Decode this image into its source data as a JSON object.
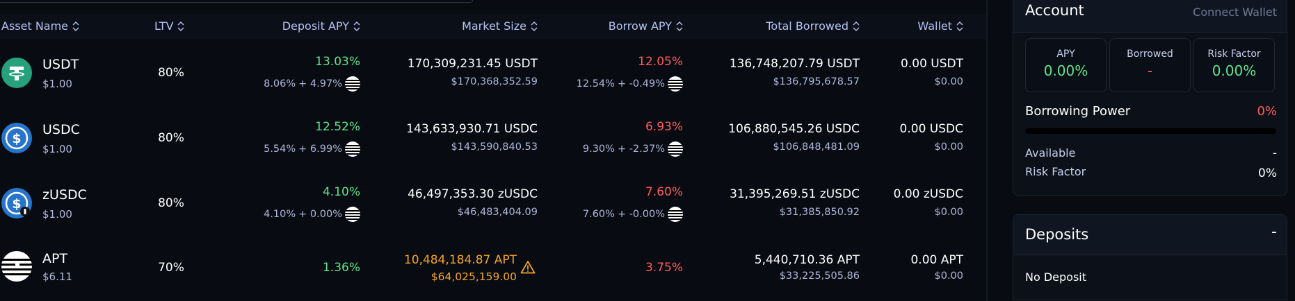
{
  "table": {
    "headers": {
      "asset_name": "Asset Name",
      "ltv": "LTV",
      "deposit_apy": "Deposit APY",
      "market_size": "Market Size",
      "borrow_apy": "Borrow APY",
      "total_borrowed": "Total Borrowed",
      "wallet": "Wallet"
    },
    "rows": [
      {
        "symbol": "USDT",
        "price": "$1.00",
        "ltv": "80%",
        "deposit_apy": "13.03%",
        "deposit_base": "8.06%",
        "deposit_reward": "+ 4.97%",
        "market_size": "170,309,231.45 USDT",
        "market_size_usd": "$170,368,352.59",
        "borrow_apy": "12.05%",
        "borrow_base": "12.54%",
        "borrow_reward": "+ -0.49%",
        "total_borrowed": "136,748,207.79 USDT",
        "total_borrowed_usd": "$136,795,678.57",
        "wallet": "0.00 USDT",
        "wallet_usd": "$0.00",
        "logo_color": "#26a17b"
      },
      {
        "symbol": "USDC",
        "price": "$1.00",
        "ltv": "80%",
        "deposit_apy": "12.52%",
        "deposit_base": "5.54%",
        "deposit_reward": "+ 6.99%",
        "market_size": "143,633,930.71 USDC",
        "market_size_usd": "$143,590,840.53",
        "borrow_apy": "6.93%",
        "borrow_base": "9.30%",
        "borrow_reward": "+ -2.37%",
        "total_borrowed": "106,880,545.26 USDC",
        "total_borrowed_usd": "$106,848,481.09",
        "wallet": "0.00 USDC",
        "wallet_usd": "$0.00",
        "logo_color": "#2775ca"
      },
      {
        "symbol": "zUSDC",
        "price": "$1.00",
        "ltv": "80%",
        "deposit_apy": "4.10%",
        "deposit_base": "4.10%",
        "deposit_reward": "+ 0.00%",
        "market_size": "46,497,353.30 zUSDC",
        "market_size_usd": "$46,483,404.09",
        "borrow_apy": "7.60%",
        "borrow_base": "7.60%",
        "borrow_reward": "+ -0.00%",
        "total_borrowed": "31,395,269.51 zUSDC",
        "total_borrowed_usd": "$31,385,850.92",
        "wallet": "0.00 zUSDC",
        "wallet_usd": "$0.00",
        "logo_color": "#2775ca"
      },
      {
        "symbol": "APT",
        "price": "$6.11",
        "ltv": "70%",
        "deposit_apy": "1.36%",
        "market_size": "10,484,184.87 APT",
        "market_size_usd": "$64,025,159.00",
        "market_size_warning": "warning-icon",
        "borrow_apy": "3.75%",
        "total_borrowed": "5,440,710.36 APT",
        "total_borrowed_usd": "$33,225,505.86",
        "wallet": "0.00 APT",
        "wallet_usd": "$0.00",
        "logo_color": "#ffffff"
      }
    ]
  },
  "account": {
    "title": "Account",
    "connect_label": "Connect Wallet",
    "stats": [
      {
        "label": "APY",
        "value": "0.00%",
        "color": "#5ee68a"
      },
      {
        "label": "Borrowed",
        "value": "-",
        "color": "#ff5c5c"
      },
      {
        "label": "Risk Factor",
        "value": "0.00%",
        "color": "#5ee68a"
      }
    ],
    "borrowing_power_label": "Borrowing Power",
    "borrowing_power_value": "0%",
    "borrowing_power_fraction": 0,
    "available_label": "Available",
    "available_value": "-",
    "risk_factor_label": "Risk Factor",
    "risk_factor_value": "0%"
  },
  "deposits": {
    "title": "Deposits",
    "toggle_label": "-",
    "empty_label": "No Deposit"
  },
  "colors": {
    "positive": "#5ee68a",
    "negative": "#ff5c5c",
    "warning": "#f5a623",
    "header_text": "#b6c3f4"
  }
}
